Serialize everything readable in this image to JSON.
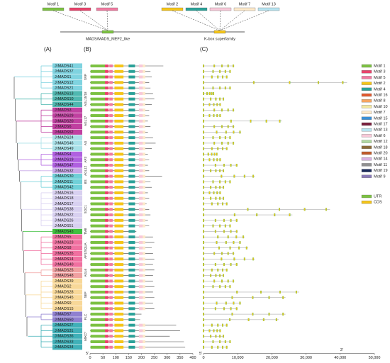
{
  "header": {
    "left_motifs": [
      "Motif 1",
      "Motif 3",
      "Motif 5"
    ],
    "right_motifs": [
      "Motif 2",
      "Motif 4",
      "Motif 6",
      "Motif 7",
      "Motif 13"
    ],
    "left_domain": "MADS/MADS_MEF2_like",
    "right_domain": "K-box superfamily"
  },
  "panel_labels": [
    "(A)",
    "(B)",
    "(C)"
  ],
  "groups": [
    {
      "label": "SVP",
      "color": "#7fd3e0",
      "genes": [
        {
          "name": "JrMADS41",
          "protein_length": 285,
          "gene_length": 9000
        },
        {
          "name": "JrMADS37",
          "protein_length": 235,
          "gene_length": 8000
        },
        {
          "name": "JrMADS1",
          "protein_length": 240,
          "gene_length": 7000
        },
        {
          "name": "JrMADS12",
          "protein_length": 230,
          "gene_length": 42000
        },
        {
          "name": "JrMADS21",
          "protein_length": 235,
          "gene_length": 8000
        }
      ]
    },
    {
      "label": "AGL15/18",
      "color": "#4fb8b0",
      "genes": [
        {
          "name": "JrMADS13",
          "protein_length": 245,
          "gene_length": 3000
        },
        {
          "name": "JrMADS10",
          "protein_length": 250,
          "gene_length": 6000
        },
        {
          "name": "JrMADS44",
          "protein_length": 240,
          "gene_length": 5000
        }
      ]
    },
    {
      "label": "AGL17",
      "color": "#c040a0",
      "genes": [
        {
          "name": "JrMADS3",
          "protein_length": 230,
          "gene_length": 9000
        },
        {
          "name": "JrMADS29",
          "protein_length": 230,
          "gene_length": 5000
        },
        {
          "name": "JrMADS20",
          "protein_length": 225,
          "gene_length": 23000
        },
        {
          "name": "JrMADS6",
          "protein_length": 235,
          "gene_length": 9000
        },
        {
          "name": "JrMADS52",
          "protein_length": 225,
          "gene_length": 11000
        }
      ]
    },
    {
      "label": "AG",
      "color": "#a8e0e8",
      "genes": [
        {
          "name": "JrMADS24",
          "protein_length": 245,
          "gene_length": 8000
        },
        {
          "name": "JrMADS46",
          "protein_length": 255,
          "gene_length": 9000
        },
        {
          "name": "JrMADS49",
          "protein_length": 240,
          "gene_length": 7000
        }
      ]
    },
    {
      "label": "AP3",
      "color": "#b060e0",
      "genes": [
        {
          "name": "JrMADS4",
          "protein_length": 225,
          "gene_length": 4000
        },
        {
          "name": "JrMADS19",
          "protein_length": 230,
          "gene_length": 5000
        },
        {
          "name": "JrMADS47",
          "protein_length": 225,
          "gene_length": 10000
        }
      ]
    },
    {
      "label": "AGL12",
      "color": "#c8a8e8",
      "genes": [
        {
          "name": "JrMADS32",
          "protein_length": 230,
          "gene_length": 6000
        }
      ]
    },
    {
      "label": "BS",
      "color": "#70d0d8",
      "genes": [
        {
          "name": "JrMADS30",
          "protein_length": 280,
          "gene_length": 15000
        },
        {
          "name": "JrMADS11",
          "protein_length": 235,
          "gene_length": 8000
        },
        {
          "name": "JrMADS42",
          "protein_length": 240,
          "gene_length": 6000
        }
      ]
    },
    {
      "label": "SOC1",
      "color": "#d8d0f0",
      "genes": [
        {
          "name": "JrMADS16",
          "protein_length": 225,
          "gene_length": 5000
        },
        {
          "name": "JrMADS18",
          "protein_length": 230,
          "gene_length": 6000
        },
        {
          "name": "JrMADS17",
          "protein_length": 220,
          "gene_length": 7000
        },
        {
          "name": "JrMADS38",
          "protein_length": 230,
          "gene_length": 37000
        },
        {
          "name": "JrMADS22",
          "protein_length": 235,
          "gene_length": 26000
        },
        {
          "name": "JrMADS26",
          "protein_length": 225,
          "gene_length": 10000
        },
        {
          "name": "JrMADS51",
          "protein_length": 230,
          "gene_length": 8000
        }
      ]
    },
    {
      "label": "TM8",
      "color": "#40c040",
      "genes": [
        {
          "name": "JrMADS43",
          "protein_length": 180,
          "gene_length": 10000
        }
      ]
    },
    {
      "label": "AP1/SQUA",
      "color": "#f070a0",
      "genes": [
        {
          "name": "JrMADS5",
          "protein_length": 245,
          "gene_length": 12000
        },
        {
          "name": "JrMADS23",
          "protein_length": 250,
          "gene_length": 11000
        },
        {
          "name": "JrMADS8",
          "protein_length": 240,
          "gene_length": 13000
        },
        {
          "name": "JrMADS35",
          "protein_length": 245,
          "gene_length": 9000
        },
        {
          "name": "JrMADS14",
          "protein_length": 250,
          "gene_length": 15000
        },
        {
          "name": "JrMADS40",
          "protein_length": 245,
          "gene_length": 10000
        }
      ]
    },
    {
      "label": "AGL6",
      "color": "#f0a0a0",
      "genes": [
        {
          "name": "JrMADS25",
          "protein_length": 250,
          "gene_length": 7000
        },
        {
          "name": "JrMADS48",
          "protein_length": 245,
          "gene_length": 6000
        }
      ]
    },
    {
      "label": "SEP",
      "color": "#f8d898",
      "genes": [
        {
          "name": "JrMADS39",
          "protein_length": 245,
          "gene_length": 9000
        },
        {
          "name": "JrMADS2",
          "protein_length": 250,
          "gene_length": 8000
        },
        {
          "name": "JrMADS28",
          "protein_length": 245,
          "gene_length": 28000
        },
        {
          "name": "JrMADS45",
          "protein_length": 250,
          "gene_length": 24000
        },
        {
          "name": "JrMADS9",
          "protein_length": 245,
          "gene_length": 11000
        },
        {
          "name": "JrMADS15",
          "protein_length": 250,
          "gene_length": 10000
        }
      ]
    },
    {
      "label": "FLC",
      "color": "#9080d0",
      "genes": [
        {
          "name": "JrMADS7",
          "protein_length": 200,
          "gene_length": 24000
        },
        {
          "name": "JrMADS50",
          "protein_length": 195,
          "gene_length": 22000
        }
      ]
    },
    {
      "label": "MIKC*",
      "color": "#40b0b8",
      "genes": [
        {
          "name": "JrMADS27",
          "protein_length": 335,
          "gene_length": 7000
        },
        {
          "name": "JrMADS31",
          "protein_length": 350,
          "gene_length": 5000
        },
        {
          "name": "JrMADS36",
          "protein_length": 310,
          "gene_length": 6000
        },
        {
          "name": "JrMADS33",
          "protein_length": 365,
          "gene_length": 8000
        },
        {
          "name": "JrMADS34",
          "protein_length": 370,
          "gene_length": 7000
        }
      ]
    }
  ],
  "panel_b": {
    "five_prime": "5'",
    "xlim": [
      0,
      400
    ],
    "xticks": [
      0,
      50,
      100,
      150,
      200,
      250,
      300,
      350,
      400
    ]
  },
  "panel_c": {
    "five_prime": "5'",
    "three_prime": "3'",
    "xlim": [
      0,
      50000
    ],
    "xticks": [
      0,
      {
        "value": 10000,
        "label": "10,000"
      },
      {
        "value": 20000,
        "label": "20,000"
      },
      {
        "value": 30000,
        "label": "30,000"
      },
      {
        "value": 40000,
        "label": "40,000"
      },
      {
        "value": 50000,
        "label": "50,000"
      }
    ]
  },
  "legend": {
    "motifs": [
      {
        "label": "Motif 1",
        "color": "#7cc142"
      },
      {
        "label": "Motif 3",
        "color": "#e8436b"
      },
      {
        "label": "Motif 5",
        "color": "#f07aa0"
      },
      {
        "label": "Motif 2",
        "color": "#f5c518"
      },
      {
        "label": "Motif 4",
        "color": "#2aa198"
      },
      {
        "label": "Motif 16",
        "color": "#e05a30"
      },
      {
        "label": "Motif 8",
        "color": "#f4a460"
      },
      {
        "label": "Motif 10",
        "color": "#f2e8a0"
      },
      {
        "label": "Motif 7",
        "color": "#fde9c9"
      },
      {
        "label": "Motif 15",
        "color": "#3a8fd6"
      },
      {
        "label": "Motif 17",
        "color": "#7a1f3d"
      },
      {
        "label": "Motif 13",
        "color": "#b6e3f0"
      },
      {
        "label": "Motif 6",
        "color": "#f8c8d8"
      },
      {
        "label": "Motif 12",
        "color": "#b0d8a0"
      },
      {
        "label": "Motif 18",
        "color": "#8b6b3a"
      },
      {
        "label": "Motif 20",
        "color": "#c05a2a"
      },
      {
        "label": "Motif 14",
        "color": "#d8b0e0"
      },
      {
        "label": "Motif 11",
        "color": "#909090"
      },
      {
        "label": "Motif 19",
        "color": "#1a2a5a"
      },
      {
        "label": "Motif 9",
        "color": "#8a7ab8"
      }
    ],
    "structure": [
      {
        "label": "UTR",
        "color": "#7cc142"
      },
      {
        "label": "CDS",
        "color": "#f5c518"
      }
    ]
  }
}
